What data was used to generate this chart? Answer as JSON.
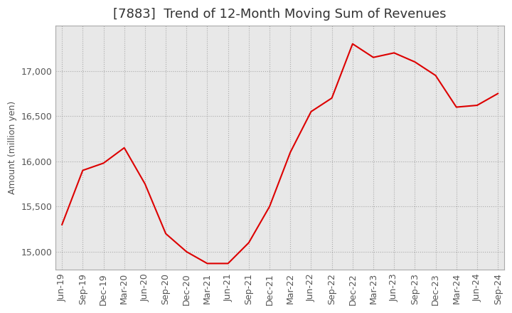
{
  "title": "[7883]  Trend of 12-Month Moving Sum of Revenues",
  "ylabel": "Amount (million yen)",
  "line_color": "#dd0000",
  "background_color": "#ffffff",
  "plot_bg_color": "#e8e8e8",
  "grid_color": "#aaaaaa",
  "x_labels": [
    "Jun-19",
    "Sep-19",
    "Dec-19",
    "Mar-20",
    "Jun-20",
    "Sep-20",
    "Dec-20",
    "Mar-21",
    "Jun-21",
    "Sep-21",
    "Dec-21",
    "Mar-22",
    "Jun-22",
    "Sep-22",
    "Dec-22",
    "Mar-23",
    "Jun-23",
    "Sep-23",
    "Dec-23",
    "Mar-24",
    "Jun-24",
    "Sep-24"
  ],
  "values": [
    15300,
    15900,
    15980,
    16150,
    15750,
    15200,
    15000,
    14870,
    14870,
    15100,
    15500,
    16100,
    16550,
    16700,
    17300,
    17150,
    17200,
    17100,
    16950,
    16600,
    16620,
    16750
  ],
  "ylim_min": 14800,
  "ylim_max": 17500,
  "yticks": [
    15000,
    15500,
    16000,
    16500,
    17000
  ],
  "title_fontsize": 13,
  "label_fontsize": 9,
  "tick_fontsize": 9
}
